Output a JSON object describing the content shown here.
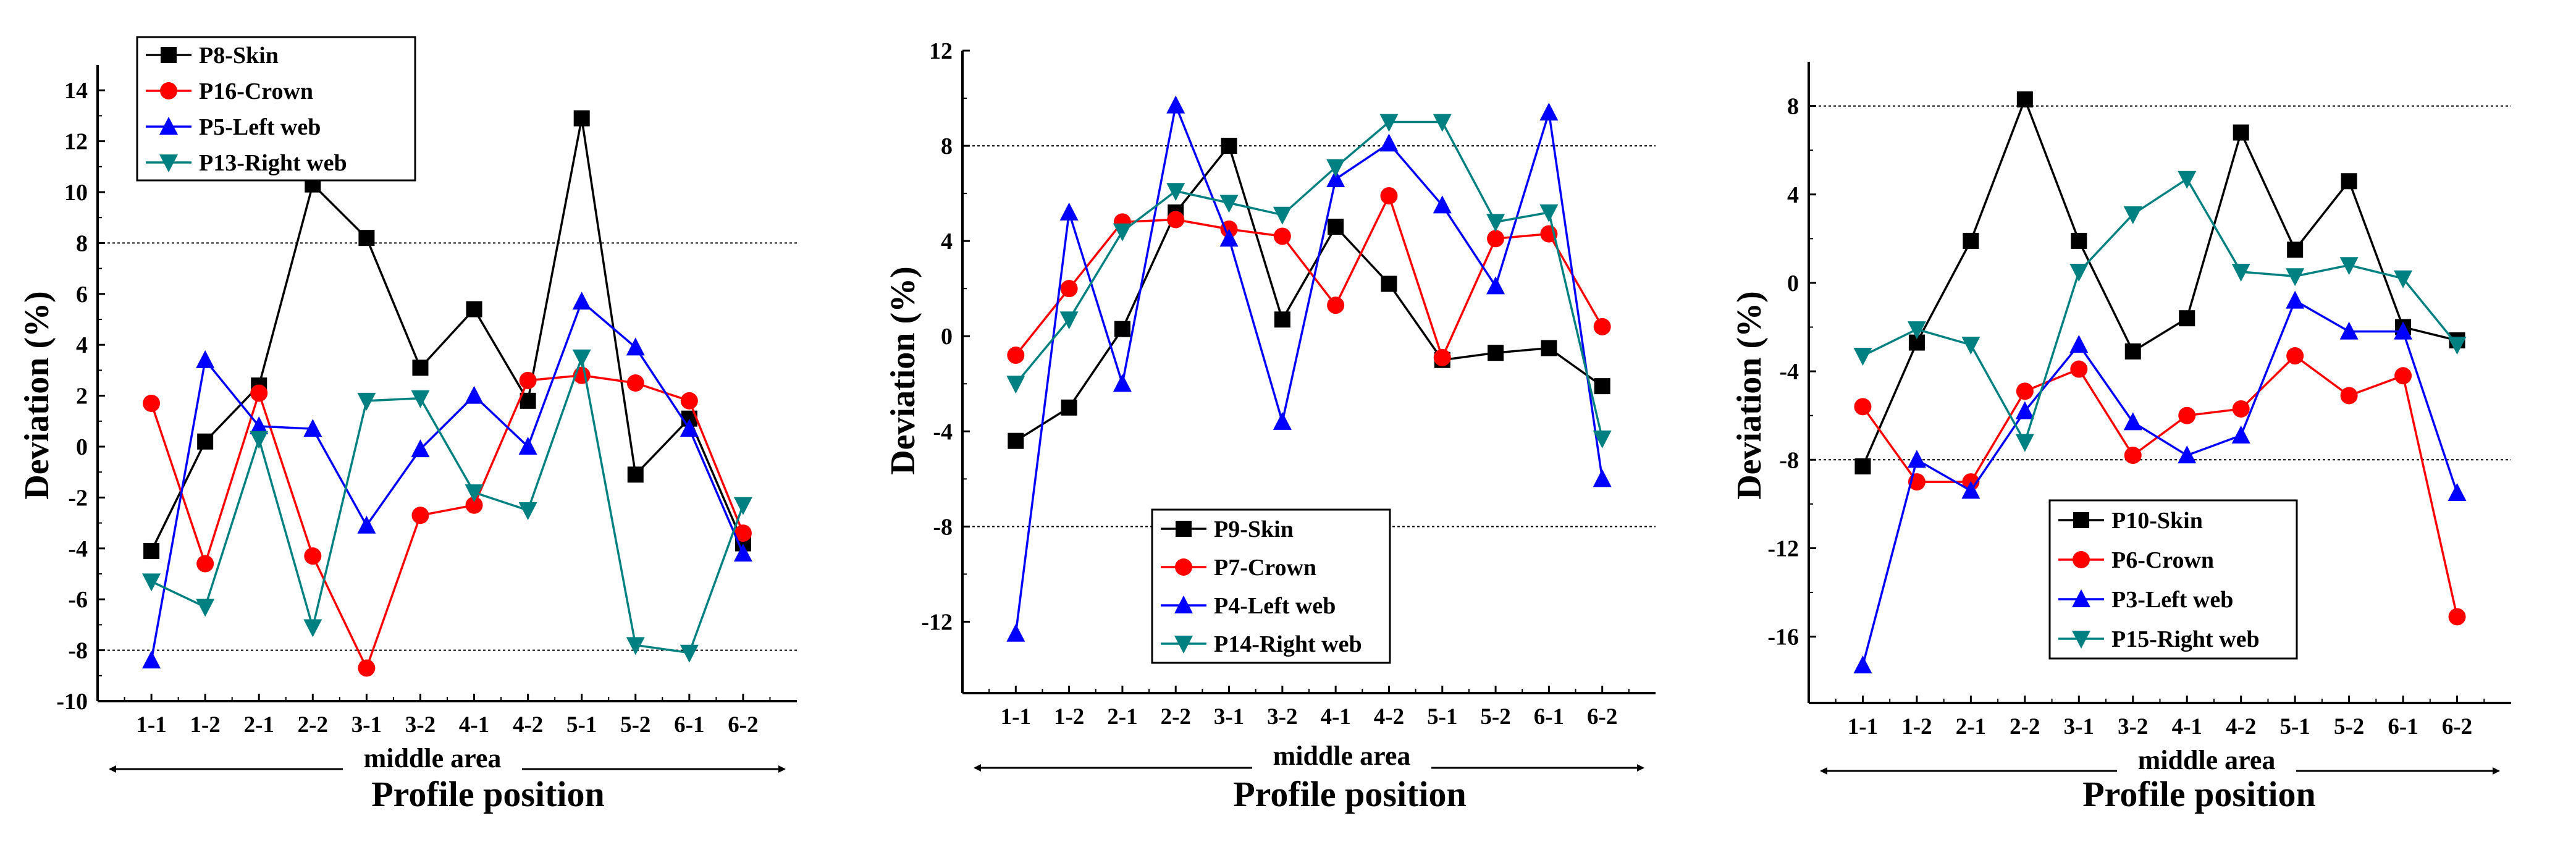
{
  "chart_data": [
    {
      "type": "line",
      "categories": [
        "1-1",
        "1-2",
        "2-1",
        "2-2",
        "3-1",
        "3-2",
        "4-1",
        "4-2",
        "5-1",
        "5-2",
        "6-1",
        "6-2"
      ],
      "ylim": [
        -10,
        15
      ],
      "yticks": [
        -10,
        -8,
        -6,
        -4,
        -2,
        0,
        2,
        4,
        6,
        8,
        10,
        12,
        14
      ],
      "reference_lines": [
        8,
        -8
      ],
      "ylabel": "Deviation  (%)",
      "xlabel": "Profile position",
      "area_label": "middle area",
      "legend_position": "top-left",
      "series": [
        {
          "name": "P8-Skin",
          "color": "#000000",
          "marker": "square",
          "values": [
            -4.1,
            0.2,
            2.4,
            10.3,
            8.2,
            3.1,
            5.4,
            1.8,
            12.9,
            -1.1,
            1.1,
            -3.8
          ]
        },
        {
          "name": "P16-Crown",
          "color": "#ff0000",
          "marker": "circle",
          "values": [
            1.7,
            -4.6,
            2.1,
            -4.3,
            -8.7,
            -2.7,
            -2.3,
            2.6,
            2.8,
            2.5,
            1.8,
            -3.4
          ]
        },
        {
          "name": "P5-Left web",
          "color": "#0000ff",
          "marker": "triangle-up",
          "values": [
            -8.4,
            3.4,
            0.8,
            0.7,
            -3.1,
            -0.1,
            2.0,
            0.0,
            5.7,
            3.9,
            0.7,
            -4.2
          ]
        },
        {
          "name": "P13-Right web",
          "color": "#008080",
          "marker": "triangle-down",
          "values": [
            -5.3,
            -6.3,
            0.3,
            -7.1,
            1.8,
            1.9,
            -1.8,
            -2.5,
            3.5,
            -7.8,
            -8.1,
            -2.3
          ]
        }
      ]
    },
    {
      "type": "line",
      "categories": [
        "1-1",
        "1-2",
        "2-1",
        "2-2",
        "3-1",
        "3-2",
        "4-1",
        "4-2",
        "5-1",
        "5-2",
        "6-1",
        "6-2"
      ],
      "ylim": [
        -15,
        12
      ],
      "yticks": [
        -12,
        -8,
        -4,
        0,
        4,
        8,
        12
      ],
      "reference_lines": [
        8,
        -8
      ],
      "ylabel": "Deviation  (%)",
      "xlabel": "Profile position",
      "area_label": "middle area",
      "legend_position": "bottom-left",
      "series": [
        {
          "name": "P9-Skin",
          "color": "#000000",
          "marker": "square",
          "values": [
            -4.4,
            -3.0,
            0.3,
            5.2,
            8.0,
            0.7,
            4.6,
            2.2,
            -1.0,
            -0.7,
            -0.5,
            -2.1
          ]
        },
        {
          "name": "P7-Crown",
          "color": "#ff0000",
          "marker": "circle",
          "values": [
            -0.8,
            2.0,
            4.8,
            4.9,
            4.5,
            4.2,
            1.3,
            5.9,
            -0.9,
            4.1,
            4.3,
            0.4
          ]
        },
        {
          "name": "P4-Left web",
          "color": "#0000ff",
          "marker": "triangle-up",
          "values": [
            -12.5,
            5.2,
            -2.0,
            9.7,
            4.1,
            -3.6,
            6.6,
            8.1,
            5.5,
            2.1,
            9.4,
            -6.0
          ]
        },
        {
          "name": "P14-Right web",
          "color": "#008080",
          "marker": "triangle-down",
          "values": [
            -2.0,
            0.7,
            4.4,
            6.1,
            5.6,
            5.1,
            7.1,
            9.0,
            9.0,
            4.8,
            5.2,
            -4.3
          ]
        }
      ]
    },
    {
      "type": "line",
      "categories": [
        "1-1",
        "1-2",
        "2-1",
        "2-2",
        "3-1",
        "3-2",
        "4-1",
        "4-2",
        "5-1",
        "5-2",
        "6-1",
        "6-2"
      ],
      "ylim": [
        -19,
        10
      ],
      "yticks": [
        -16,
        -12,
        -8,
        -4,
        0,
        4,
        8
      ],
      "reference_lines": [
        8,
        -8
      ],
      "ylabel": "Deviation  (%)",
      "xlabel": "Profile position",
      "area_label": "middle area",
      "legend_position": "bottom-left",
      "series": [
        {
          "name": "P10-Skin",
          "color": "#000000",
          "marker": "square",
          "values": [
            -8.3,
            -2.7,
            1.9,
            8.3,
            1.9,
            -3.1,
            -1.6,
            6.8,
            1.5,
            4.6,
            -2.0,
            -2.6
          ]
        },
        {
          "name": "P6-Crown",
          "color": "#ff0000",
          "marker": "circle",
          "values": [
            -5.6,
            -9.0,
            -9.0,
            -4.9,
            -3.9,
            -7.8,
            -6.0,
            -5.7,
            -3.3,
            -5.1,
            -4.2,
            -15.1
          ]
        },
        {
          "name": "P3-Left web",
          "color": "#0000ff",
          "marker": "triangle-up",
          "values": [
            -17.3,
            -8.0,
            -9.4,
            -5.8,
            -2.8,
            -6.3,
            -7.8,
            -6.9,
            -0.8,
            -2.2,
            -2.2,
            -9.5
          ]
        },
        {
          "name": "P15-Right web",
          "color": "#008080",
          "marker": "triangle-down",
          "values": [
            -3.3,
            -2.1,
            -2.8,
            -7.2,
            0.5,
            3.1,
            4.7,
            0.5,
            0.3,
            0.8,
            0.2,
            -2.8
          ]
        }
      ]
    }
  ]
}
